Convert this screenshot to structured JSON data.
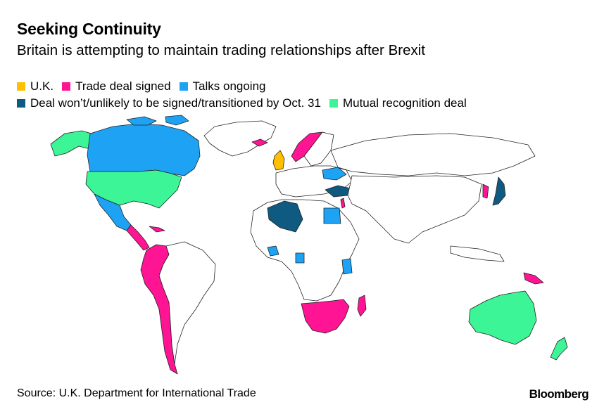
{
  "header": {
    "title": "Seeking Continuity",
    "subtitle": "Britain is attempting to maintain trading relationships after Brexit"
  },
  "legend": [
    {
      "label": "U.K.",
      "color": "#FFC000"
    },
    {
      "label": "Trade deal signed",
      "color": "#FF1493"
    },
    {
      "label": "Talks ongoing",
      "color": "#1EA3F4"
    },
    {
      "label": "Deal won’t/unlikely to be signed/transitioned by Oct. 31",
      "color": "#0E5A80"
    },
    {
      "label": "Mutual recognition deal",
      "color": "#3CF596"
    }
  ],
  "footer": {
    "source": "Source: U.K. Department for International Trade",
    "brand": "Bloomberg"
  }
}
